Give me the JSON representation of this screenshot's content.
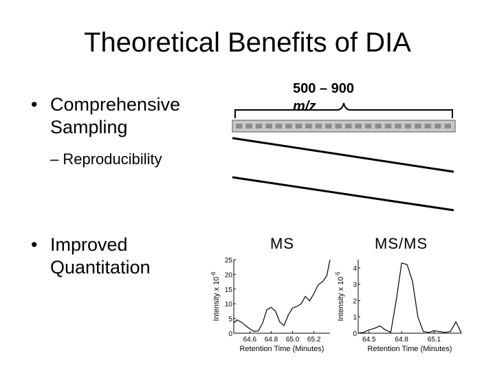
{
  "slide": {
    "title": "Theoretical Benefits of DIA",
    "bullets": [
      {
        "text_line1": "Comprehensive",
        "text_line2": "Sampling",
        "marker": "•"
      },
      {
        "text_line1": "Improved",
        "text_line2": "Quantitation",
        "marker": "•"
      }
    ],
    "sub_bullet": {
      "marker": "–",
      "text": "Reproducibility"
    }
  },
  "diagram": {
    "mz_range": "500 – 900",
    "mz_unit": "m/z",
    "ms_label": "MS",
    "msms_label": "MS/MS",
    "window_count": 22,
    "colors": {
      "bar_fill": "#c8c8c8",
      "window_fill": "#8c8c8c",
      "line": "#000000"
    }
  },
  "chart_data": [
    {
      "type": "line",
      "xlabel": "Retention Time (Minutes)",
      "ylabel": "Intensity x 10",
      "ylabel_exponent": "-6",
      "xlim": [
        64.45,
        65.35
      ],
      "ylim": [
        0,
        25
      ],
      "xticks": [
        "64.6",
        "64.8",
        "65.0",
        "65.2"
      ],
      "xtick_values": [
        64.6,
        64.8,
        65.0,
        65.2
      ],
      "yticks": [
        "0",
        "5",
        "10",
        "15",
        "20",
        "25"
      ],
      "ytick_values": [
        0,
        5,
        10,
        15,
        20,
        25
      ],
      "x": [
        64.45,
        64.48,
        64.52,
        64.56,
        64.6,
        64.64,
        64.68,
        64.72,
        64.76,
        64.8,
        64.84,
        64.88,
        64.92,
        64.96,
        65.0,
        65.04,
        65.08,
        65.12,
        65.16,
        65.2,
        65.24,
        65.28,
        65.32,
        65.35
      ],
      "y": [
        3.5,
        4.5,
        3.8,
        2.6,
        1.5,
        0.6,
        0.8,
        3.5,
        8.0,
        8.8,
        7.5,
        3.8,
        2.6,
        6.2,
        8.6,
        9.1,
        10.0,
        12.5,
        11.0,
        13.5,
        16.5,
        17.5,
        19.5,
        25.0
      ]
    },
    {
      "type": "line",
      "xlabel": "Retention Time (Minutes)",
      "ylabel": "Intensity x 10",
      "ylabel_exponent": "-5",
      "xlim": [
        64.4,
        65.35
      ],
      "ylim": [
        0,
        4.5
      ],
      "xticks": [
        "64.5",
        "64.8",
        "65.1"
      ],
      "xtick_values": [
        64.5,
        64.8,
        65.1
      ],
      "yticks": [
        "0",
        "1",
        "2",
        "3",
        "4"
      ],
      "ytick_values": [
        0,
        1,
        2,
        3,
        4
      ],
      "x": [
        64.4,
        64.45,
        64.5,
        64.55,
        64.6,
        64.65,
        64.7,
        64.75,
        64.8,
        64.85,
        64.9,
        64.95,
        65.0,
        65.05,
        65.1,
        65.15,
        65.2,
        65.25,
        65.3,
        65.33,
        65.35
      ],
      "y": [
        0.0,
        0.05,
        0.2,
        0.3,
        0.45,
        0.2,
        0.05,
        2.0,
        4.3,
        4.2,
        3.2,
        1.0,
        0.1,
        0.05,
        0.15,
        0.1,
        0.05,
        0.1,
        0.7,
        0.3,
        0.0
      ]
    }
  ]
}
